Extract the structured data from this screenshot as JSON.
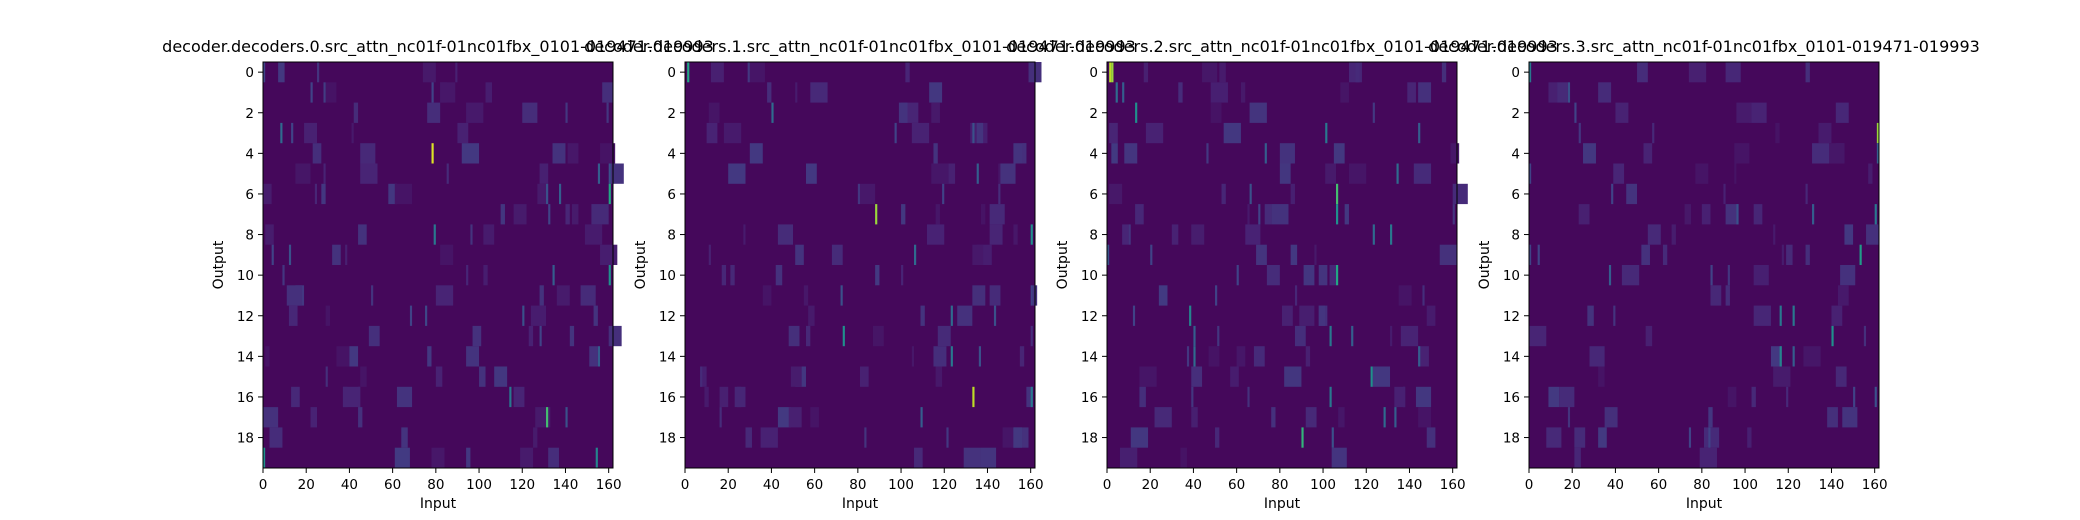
{
  "chart_data": [
    {
      "type": "heatmap",
      "title": "decoder.decoders.0.src_attn_nc01f-01nc01fbx_0101-019471-019993",
      "xlabel": "Input",
      "ylabel": "Output",
      "xlim": [
        0,
        162
      ],
      "ylim": [
        20,
        0
      ],
      "xticks": [
        "0",
        "20",
        "40",
        "60",
        "80",
        "100",
        "120",
        "140",
        "160"
      ],
      "yticks": [
        "0",
        "2",
        "4",
        "6",
        "8",
        "10",
        "12",
        "14",
        "16",
        "18"
      ],
      "colormap": "viridis",
      "rows": 20,
      "cols": 162,
      "peaks": [
        [
          0,
          0,
          0.2
        ],
        [
          0,
          25,
          0.15
        ],
        [
          1,
          22,
          0.2
        ],
        [
          1,
          28,
          0.18
        ],
        [
          1,
          78,
          0.2
        ],
        [
          3,
          8,
          0.35
        ],
        [
          3,
          13,
          0.2
        ],
        [
          4,
          78,
          0.95
        ],
        [
          5,
          155,
          0.3
        ],
        [
          5,
          160,
          0.25
        ],
        [
          6,
          160,
          0.6
        ],
        [
          6,
          131,
          0.25
        ],
        [
          6,
          137,
          0.3
        ],
        [
          7,
          132,
          0.2
        ],
        [
          8,
          79,
          0.4
        ],
        [
          8,
          96,
          0.15
        ],
        [
          9,
          12,
          0.25
        ],
        [
          9,
          4,
          0.2
        ],
        [
          10,
          134,
          0.3
        ],
        [
          10,
          160,
          0.5
        ],
        [
          11,
          50,
          0.15
        ],
        [
          12,
          68,
          0.2
        ],
        [
          12,
          75,
          0.22
        ],
        [
          12,
          120,
          0.25
        ],
        [
          13,
          128,
          0.2
        ],
        [
          14,
          155,
          0.3
        ],
        [
          16,
          114,
          0.4
        ],
        [
          17,
          131,
          0.7
        ],
        [
          17,
          140,
          0.25
        ],
        [
          19,
          0,
          0.5
        ],
        [
          19,
          154,
          0.45
        ]
      ]
    },
    {
      "type": "heatmap",
      "title": "decoder.decoders.1.src_attn_nc01f-01nc01fbx_0101-019471-019993",
      "xlabel": "Input",
      "ylabel": "Output",
      "xlim": [
        0,
        162
      ],
      "ylim": [
        20,
        0
      ],
      "xticks": [
        "0",
        "20",
        "40",
        "60",
        "80",
        "100",
        "120",
        "140",
        "160"
      ],
      "yticks": [
        "0",
        "2",
        "4",
        "6",
        "8",
        "10",
        "12",
        "14",
        "16",
        "18"
      ],
      "colormap": "viridis",
      "rows": 20,
      "cols": 162,
      "peaks": [
        [
          0,
          1,
          0.6
        ],
        [
          2,
          40,
          0.35
        ],
        [
          3,
          97,
          0.2
        ],
        [
          3,
          133,
          0.25
        ],
        [
          5,
          135,
          0.3
        ],
        [
          6,
          119,
          0.2
        ],
        [
          7,
          88,
          0.85
        ],
        [
          8,
          160,
          0.5
        ],
        [
          9,
          106,
          0.35
        ],
        [
          11,
          72,
          0.25
        ],
        [
          11,
          160,
          0.2
        ],
        [
          12,
          123,
          0.35
        ],
        [
          12,
          143,
          0.25
        ],
        [
          13,
          73,
          0.5
        ],
        [
          14,
          123,
          0.4
        ],
        [
          14,
          136,
          0.25
        ],
        [
          16,
          133,
          0.9
        ],
        [
          16,
          160,
          0.4
        ],
        [
          17,
          109,
          0.3
        ],
        [
          18,
          83,
          0.15
        ]
      ]
    },
    {
      "type": "heatmap",
      "title": "decoder.decoders.2.src_attn_nc01f-01nc01fbx_0101-019471-019993",
      "xlabel": "Input",
      "ylabel": "Output",
      "xlim": [
        0,
        162
      ],
      "ylim": [
        20,
        0
      ],
      "xticks": [
        "0",
        "20",
        "40",
        "60",
        "80",
        "100",
        "120",
        "140",
        "160"
      ],
      "yticks": [
        "0",
        "2",
        "4",
        "6",
        "8",
        "10",
        "12",
        "14",
        "16",
        "18"
      ],
      "colormap": "viridis",
      "rows": 20,
      "cols": 162,
      "peaks": [
        [
          0,
          1,
          0.9
        ],
        [
          0,
          2,
          0.85
        ],
        [
          1,
          4,
          0.35
        ],
        [
          1,
          7,
          0.3
        ],
        [
          2,
          13,
          0.5
        ],
        [
          3,
          101,
          0.4
        ],
        [
          3,
          144,
          0.3
        ],
        [
          4,
          73,
          0.3
        ],
        [
          5,
          134,
          0.35
        ],
        [
          6,
          106,
          0.7
        ],
        [
          6,
          66,
          0.25
        ],
        [
          7,
          106,
          0.5
        ],
        [
          7,
          70,
          0.2
        ],
        [
          8,
          123,
          0.35
        ],
        [
          8,
          131,
          0.4
        ],
        [
          9,
          0,
          0.25
        ],
        [
          9,
          20,
          0.2
        ],
        [
          10,
          106,
          0.6
        ],
        [
          10,
          60,
          0.2
        ],
        [
          11,
          50,
          0.2
        ],
        [
          12,
          38,
          0.45
        ],
        [
          12,
          12,
          0.2
        ],
        [
          13,
          40,
          0.3
        ],
        [
          13,
          103,
          0.4
        ],
        [
          13,
          113,
          0.3
        ],
        [
          14,
          40,
          0.35
        ],
        [
          14,
          144,
          0.3
        ],
        [
          15,
          122,
          0.5
        ],
        [
          16,
          103,
          0.4
        ],
        [
          17,
          128,
          0.35
        ],
        [
          17,
          133,
          0.3
        ],
        [
          18,
          90,
          0.65
        ],
        [
          18,
          104,
          0.25
        ]
      ]
    },
    {
      "type": "heatmap",
      "title": "decoder.decoders.3.src_attn_nc01f-01nc01fbx_0101-019471-019993",
      "xlabel": "Input",
      "ylabel": "Output",
      "xlim": [
        0,
        162
      ],
      "ylim": [
        20,
        0
      ],
      "xticks": [
        "0",
        "20",
        "40",
        "60",
        "80",
        "100",
        "120",
        "140",
        "160"
      ],
      "yticks": [
        "0",
        "2",
        "4",
        "6",
        "8",
        "10",
        "12",
        "14",
        "16",
        "18"
      ],
      "colormap": "viridis",
      "rows": 20,
      "cols": 162,
      "peaks": [
        [
          0,
          0,
          0.4
        ],
        [
          1,
          18,
          0.25
        ],
        [
          2,
          21,
          0.2
        ],
        [
          3,
          161,
          0.85
        ],
        [
          4,
          161,
          0.3
        ],
        [
          5,
          0,
          0.2
        ],
        [
          6,
          38,
          0.2
        ],
        [
          7,
          96,
          0.25
        ],
        [
          7,
          131,
          0.3
        ],
        [
          7,
          160,
          0.4
        ],
        [
          9,
          0,
          0.2
        ],
        [
          9,
          4,
          0.2
        ],
        [
          9,
          153,
          0.55
        ],
        [
          10,
          37,
          0.3
        ],
        [
          10,
          84,
          0.2
        ],
        [
          12,
          116,
          0.4
        ],
        [
          12,
          122,
          0.4
        ],
        [
          13,
          140,
          0.5
        ],
        [
          14,
          116,
          0.45
        ],
        [
          14,
          122,
          0.3
        ],
        [
          16,
          150,
          0.2
        ],
        [
          16,
          160,
          0.25
        ],
        [
          17,
          18,
          0.15
        ],
        [
          18,
          74,
          0.2
        ],
        [
          18,
          83,
          0.2
        ]
      ]
    }
  ]
}
